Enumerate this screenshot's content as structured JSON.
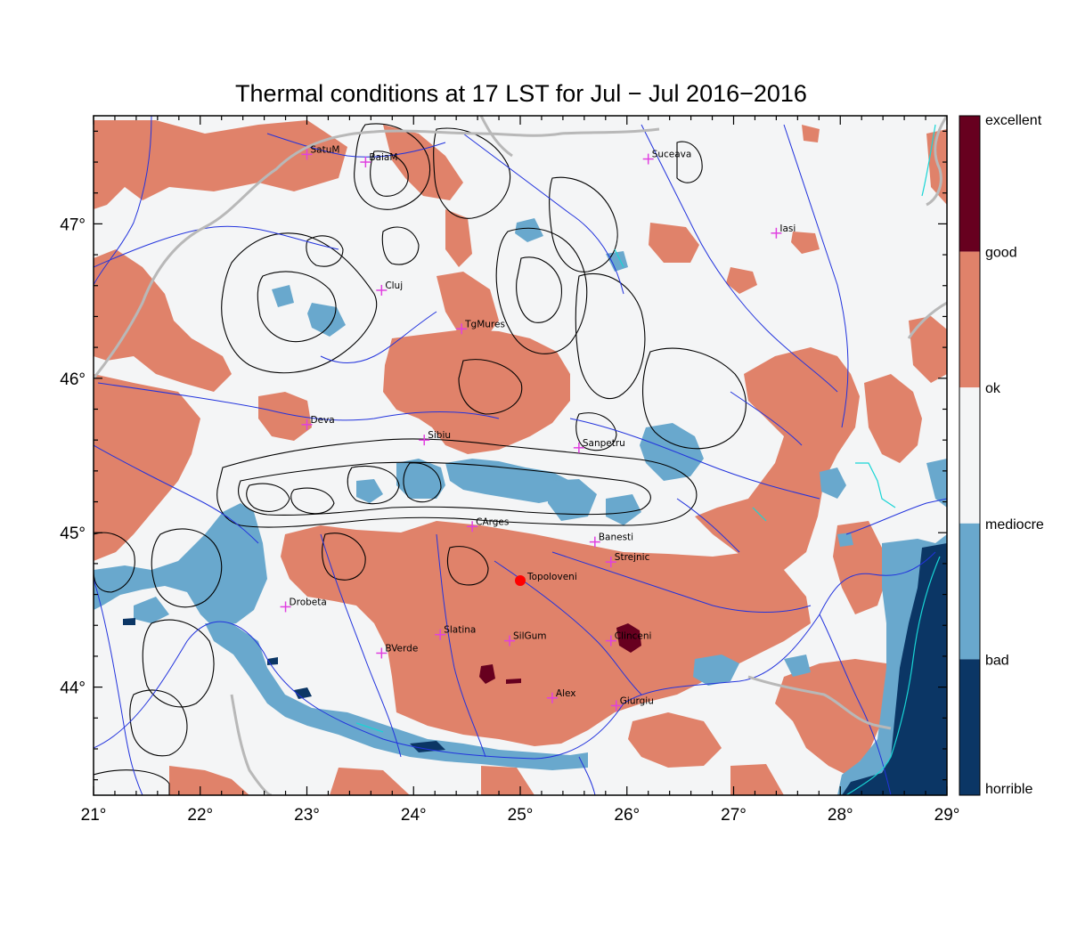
{
  "title": "Thermal conditions at 17 LST for Jul − Jul  2016−2016",
  "map": {
    "lon_range": [
      21,
      29
    ],
    "lat_range": [
      43.3,
      47.7
    ],
    "x_ticks": [
      "21°",
      "22°",
      "23°",
      "24°",
      "25°",
      "26°",
      "27°",
      "28°",
      "29°"
    ],
    "y_ticks": [
      "44°",
      "45°",
      "46°",
      "47°"
    ],
    "cities": [
      {
        "name": "SatuM",
        "lon": 23.0,
        "lat": 47.45
      },
      {
        "name": "BaiaM",
        "lon": 23.55,
        "lat": 47.4
      },
      {
        "name": "Suceava",
        "lon": 26.2,
        "lat": 47.42
      },
      {
        "name": "Iasi",
        "lon": 27.4,
        "lat": 46.94
      },
      {
        "name": "Cluj",
        "lon": 23.7,
        "lat": 46.57
      },
      {
        "name": "TgMures",
        "lon": 24.45,
        "lat": 46.32
      },
      {
        "name": "Deva",
        "lon": 23.0,
        "lat": 45.7
      },
      {
        "name": "Sibiu",
        "lon": 24.1,
        "lat": 45.6
      },
      {
        "name": "Sanpetru",
        "lon": 25.55,
        "lat": 45.55
      },
      {
        "name": "CArges",
        "lon": 24.55,
        "lat": 45.04
      },
      {
        "name": "Banesti",
        "lon": 25.7,
        "lat": 44.94
      },
      {
        "name": "Strejnic",
        "lon": 25.85,
        "lat": 44.81
      },
      {
        "name": "Drobeta",
        "lon": 22.8,
        "lat": 44.52
      },
      {
        "name": "Slatina",
        "lon": 24.25,
        "lat": 44.34
      },
      {
        "name": "SilGum",
        "lon": 24.9,
        "lat": 44.3
      },
      {
        "name": "Clinceni",
        "lon": 25.85,
        "lat": 44.3
      },
      {
        "name": "BVerde",
        "lon": 23.7,
        "lat": 44.22
      },
      {
        "name": "Alex",
        "lon": 25.3,
        "lat": 43.93
      },
      {
        "name": "Giurgiu",
        "lon": 25.9,
        "lat": 43.88
      }
    ],
    "highlight_station": {
      "name": "Topoloveni",
      "lon": 25.0,
      "lat": 44.69,
      "color": "#ff0000"
    },
    "station_marker_color": "#e040e0"
  },
  "legend": {
    "labels": [
      "excellent",
      "good",
      "ok",
      "mediocre",
      "bad",
      "horrible"
    ],
    "colors": [
      "#67001f",
      "#e0826a",
      "#f4f5f6",
      "#69a8cd",
      "#0b3665"
    ]
  },
  "colors": {
    "ok": "#f4f5f6",
    "good": "#e0826a",
    "excellent": "#67001f",
    "bad": "#69a8cd",
    "horrible": "#0b3665",
    "rivers": "#2233dd",
    "borders": "#b8b8b8"
  }
}
